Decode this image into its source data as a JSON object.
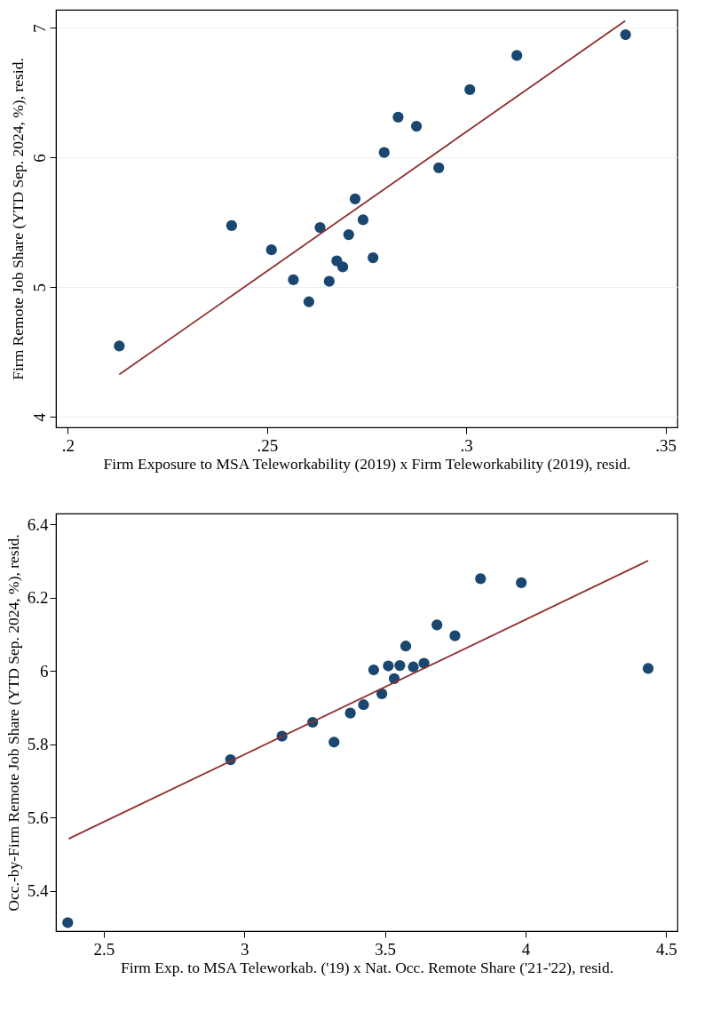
{
  "chart_data": [
    {
      "type": "scatter",
      "xlabel": "Firm Exposure to MSA Teleworkability (2019) x Firm Teleworkability (2019), resid.",
      "ylabel": "Firm Remote Job Share (YTD Sep. 2024, %), resid.",
      "xlim": [
        0.197,
        0.353
      ],
      "ylim": [
        3.92,
        7.14
      ],
      "xticks": [
        {
          "value": 0.2,
          "label": ".2"
        },
        {
          "value": 0.25,
          "label": ".25"
        },
        {
          "value": 0.3,
          "label": ".3"
        },
        {
          "value": 0.35,
          "label": ".35"
        }
      ],
      "yticks": [
        4,
        5,
        6,
        7
      ],
      "grid": "y",
      "series": [
        {
          "marker": "circle",
          "color": "#1a476f",
          "x": [
            0.2129,
            0.2411,
            0.2511,
            0.2566,
            0.2605,
            0.2633,
            0.2656,
            0.2675,
            0.269,
            0.2705,
            0.2721,
            0.2741,
            0.2766,
            0.2794,
            0.2829,
            0.2875,
            0.2931,
            0.3009,
            0.3127,
            0.34
          ],
          "values": [
            4.547,
            5.476,
            5.289,
            5.058,
            4.888,
            5.461,
            5.046,
            5.204,
            5.158,
            5.406,
            5.682,
            5.521,
            5.228,
            6.039,
            6.312,
            6.242,
            5.921,
            6.524,
            6.788,
            6.948
          ]
        },
        {
          "type": "line",
          "color": "#903030",
          "x": [
            0.2129,
            0.3399
          ],
          "values": [
            4.328,
            7.055
          ]
        }
      ]
    },
    {
      "type": "scatter",
      "xlabel": "Firm Exp. to MSA Teleworkab. ('19) x Nat. Occ. Remote Share ('21-'22), resid.",
      "ylabel": "Occ.-by-Firm Remote Job Share (YTD Sep. 2024, %), resid.",
      "xlim": [
        2.33,
        4.54
      ],
      "ylim": [
        5.29,
        6.43
      ],
      "xticks": [
        2.5,
        3,
        3.5,
        4,
        4.5
      ],
      "yticks": [
        5.4,
        5.6,
        5.8,
        6,
        6.2,
        6.4
      ],
      "grid": false,
      "series": [
        {
          "marker": "circle",
          "color": "#1a476f",
          "x": [
            2.372,
            2.951,
            3.134,
            3.243,
            3.319,
            3.377,
            3.424,
            3.46,
            3.489,
            3.512,
            3.533,
            3.553,
            3.574,
            3.601,
            3.639,
            3.685,
            3.749,
            3.84,
            3.985,
            4.436
          ],
          "values": [
            5.313,
            5.758,
            5.822,
            5.86,
            5.806,
            5.885,
            5.908,
            6.003,
            5.938,
            6.014,
            5.979,
            6.015,
            6.068,
            6.011,
            6.021,
            6.126,
            6.096,
            6.252,
            6.241,
            6.007
          ]
        },
        {
          "type": "line",
          "color": "#903030",
          "x": [
            2.375,
            4.436
          ],
          "values": [
            5.542,
            6.301
          ]
        }
      ]
    }
  ]
}
